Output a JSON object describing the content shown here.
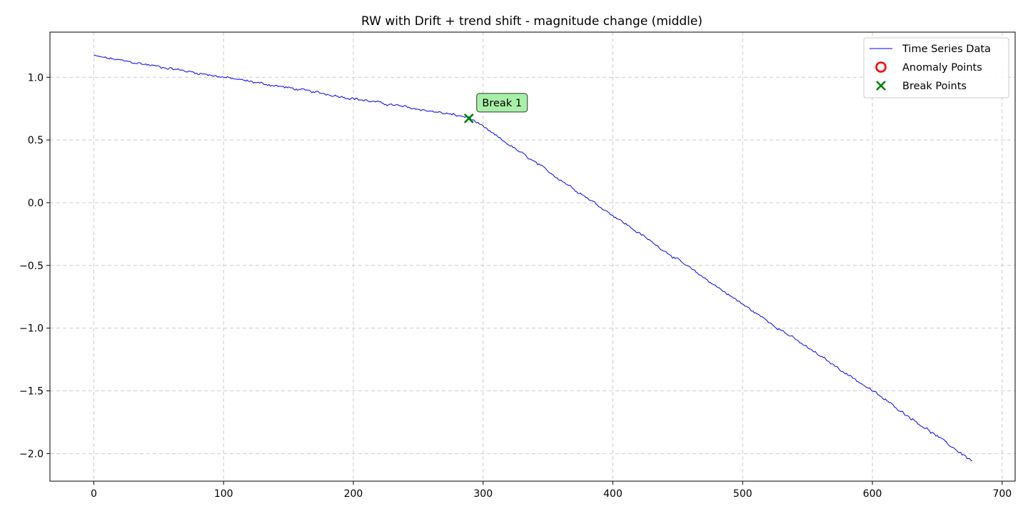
{
  "chart_data": {
    "type": "line",
    "title": "RW with Drift + trend shift - magnitude change (middle)",
    "xlabel": "",
    "ylabel": "",
    "xlim": [
      -33.8,
      710
    ],
    "ylim": [
      -2.22,
      1.36
    ],
    "x_ticks": [
      0,
      100,
      200,
      300,
      400,
      500,
      600,
      700
    ],
    "x_tick_labels": [
      "0",
      "100",
      "200",
      "300",
      "400",
      "500",
      "600",
      "700"
    ],
    "y_ticks": [
      1.0,
      0.5,
      0.0,
      -0.5,
      -1.0,
      -1.5,
      -2.0
    ],
    "y_tick_labels": [
      "1.0",
      "0.5",
      "0.0",
      "−0.5",
      "−1.0",
      "−1.5",
      "−2.0"
    ],
    "grid": true,
    "grid_style": "dashed",
    "legend_position": "top-right",
    "colors": {
      "line": "#0000ff",
      "anomaly": "#ff0000",
      "break": "#008000",
      "annotation_bg": "#a8f0a8",
      "grid": "#cccccc"
    },
    "series": [
      {
        "name": "Time Series Data",
        "trend_points": [
          [
            0,
            1.17
          ],
          [
            289,
            0.68
          ],
          [
            400,
            -0.1
          ],
          [
            500,
            -0.81
          ],
          [
            600,
            -1.5
          ],
          [
            677,
            -2.06
          ]
        ],
        "n_points": 678,
        "noise_amplitude": 0.008
      }
    ],
    "anomaly_points": [],
    "break_points": [
      {
        "x": 289,
        "y": 0.672,
        "label": "Break 1"
      }
    ],
    "legend": [
      {
        "label": "Time Series Data",
        "marker": "line"
      },
      {
        "label": "Anomaly Points",
        "marker": "circle"
      },
      {
        "label": "Break Points",
        "marker": "x"
      }
    ]
  }
}
